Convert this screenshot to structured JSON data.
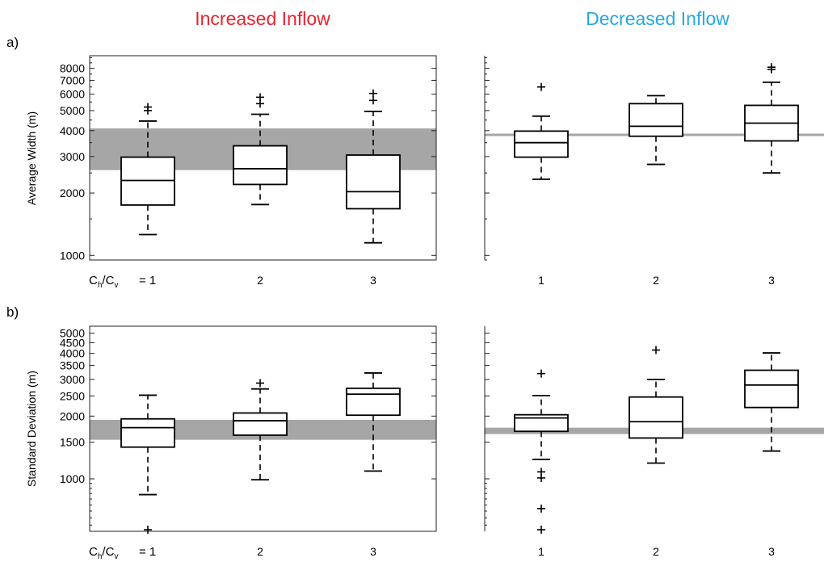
{
  "figure": {
    "col_titles": [
      {
        "text": "Increased Inflow",
        "color": "#e8232d"
      },
      {
        "text": "Decreased Inflow",
        "color": "#27a9df"
      }
    ],
    "panel_letters": [
      "a)",
      "b)"
    ],
    "ratio_label": {
      "C1": "C",
      "sub1": "h",
      "slash": "/",
      "C2": "C",
      "sub2": "v",
      "eq": "= 1"
    },
    "band_color": "#a6a6a6"
  },
  "chart_data": [
    {
      "type": "box",
      "panel": "a",
      "side": "Increased Inflow",
      "ylabel": "Average Width (m)",
      "yscale": "log",
      "ylim": [
        950,
        9200
      ],
      "yticks": [
        1000,
        2000,
        3000,
        4000,
        5000,
        6000,
        7000,
        8000
      ],
      "ytick_labels": [
        "1000",
        "2000",
        "3000",
        "4000",
        "5000",
        "6000",
        "7000",
        "8000"
      ],
      "categories": [
        "1",
        "2",
        "3"
      ],
      "band": [
        2580,
        4100
      ],
      "boxes": [
        {
          "whisker_low": 1260,
          "q1": 1750,
          "median": 2300,
          "q3": 2980,
          "whisker_high": 4450,
          "outliers": [
            5000,
            5200
          ]
        },
        {
          "whisker_low": 1760,
          "q1": 2200,
          "median": 2620,
          "q3": 3380,
          "whisker_high": 4800,
          "outliers": [
            5400,
            5800
          ]
        },
        {
          "whisker_low": 1150,
          "q1": 1680,
          "median": 2030,
          "q3": 3050,
          "whisker_high": 4950,
          "outliers": [
            5600,
            6050
          ]
        }
      ]
    },
    {
      "type": "box",
      "panel": "a",
      "side": "Decreased Inflow",
      "ylabel": "",
      "yscale": "log",
      "ylim": [
        950,
        9200
      ],
      "yticks": [
        1000,
        2000,
        3000,
        4000,
        5000,
        6000,
        7000,
        8000
      ],
      "ytick_labels": [],
      "categories": [
        "1",
        "2",
        "3"
      ],
      "line": 3820,
      "boxes": [
        {
          "whisker_low": 2330,
          "q1": 2980,
          "median": 3500,
          "q3": 3980,
          "whisker_high": 4700,
          "outliers": [
            6500
          ]
        },
        {
          "whisker_low": 2750,
          "q1": 3760,
          "median": 4200,
          "q3": 5400,
          "whisker_high": 5900,
          "outliers": []
        },
        {
          "whisker_low": 2500,
          "q1": 3570,
          "median": 4350,
          "q3": 5300,
          "whisker_high": 6850,
          "outliers": [
            7900,
            8100
          ]
        }
      ]
    },
    {
      "type": "box",
      "panel": "b",
      "side": "Increased Inflow",
      "ylabel": "Standard Deviation (m)",
      "yscale": "log",
      "ylim": [
        560,
        5400
      ],
      "yticks": [
        1000,
        1500,
        2000,
        2500,
        3000,
        3500,
        4000,
        4500,
        5000
      ],
      "ytick_labels": [
        "1000",
        "1500",
        "2000",
        "2500",
        "3000",
        "3500",
        "4000",
        "4500",
        "5000"
      ],
      "categories": [
        "1",
        "2",
        "3"
      ],
      "band": [
        1540,
        1920
      ],
      "boxes": [
        {
          "whisker_low": 840,
          "q1": 1420,
          "median": 1760,
          "q3": 1940,
          "whisker_high": 2520,
          "outliers": [
            570
          ]
        },
        {
          "whisker_low": 990,
          "q1": 1620,
          "median": 1900,
          "q3": 2070,
          "whisker_high": 2700,
          "outliers": [
            2880
          ]
        },
        {
          "whisker_low": 1090,
          "q1": 2020,
          "median": 2550,
          "q3": 2720,
          "whisker_high": 3220,
          "outliers": []
        }
      ]
    },
    {
      "type": "box",
      "panel": "b",
      "side": "Decreased Inflow",
      "ylabel": "",
      "yscale": "log",
      "ylim": [
        560,
        5400
      ],
      "yticks": [
        1000,
        1500,
        2000,
        2500,
        3000,
        3500,
        4000,
        4500,
        5000
      ],
      "ytick_labels": [],
      "categories": [
        "1",
        "2",
        "3"
      ],
      "band": [
        1640,
        1760
      ],
      "boxes": [
        {
          "whisker_low": 1240,
          "q1": 1690,
          "median": 1960,
          "q3": 2030,
          "whisker_high": 2510,
          "outliers": [
            570,
            720,
            1010,
            1080,
            3200
          ]
        },
        {
          "whisker_low": 1190,
          "q1": 1570,
          "median": 1880,
          "q3": 2470,
          "whisker_high": 3000,
          "outliers": [
            4150
          ]
        },
        {
          "whisker_low": 1360,
          "q1": 2200,
          "median": 2820,
          "q3": 3320,
          "whisker_high": 4020,
          "outliers": []
        }
      ]
    }
  ]
}
